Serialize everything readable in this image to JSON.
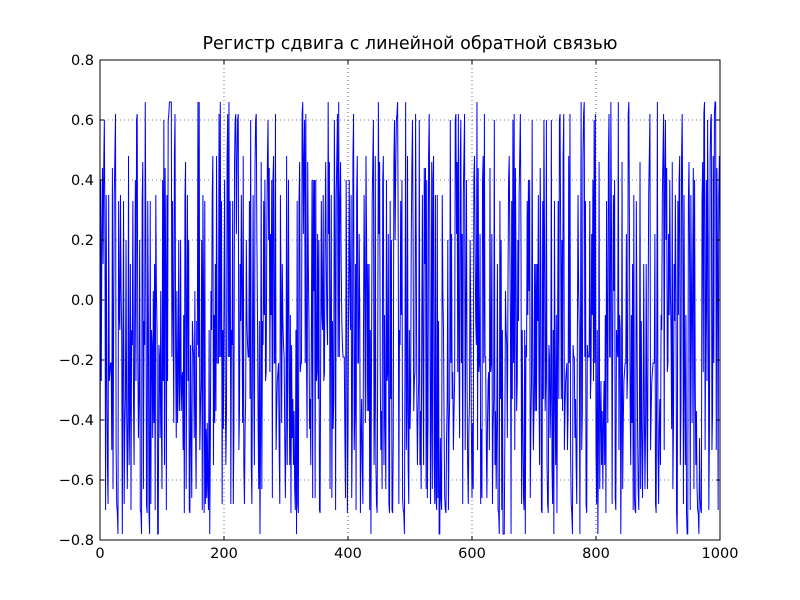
{
  "chart_data": {
    "type": "line",
    "title": "Регистр сдвига с линейной обратной связью",
    "xlabel": "",
    "ylabel": "",
    "xlim": [
      0,
      1000
    ],
    "ylim": [
      -0.8,
      0.8
    ],
    "x_ticks": [
      "0",
      "200",
      "400",
      "600",
      "800",
      "1000"
    ],
    "y_ticks": [
      "−0.8",
      "−0.6",
      "−0.4",
      "−0.2",
      "0.0",
      "0.2",
      "0.4",
      "0.6",
      "0.8"
    ],
    "grid": true,
    "levels": [
      0.66,
      0.62,
      0.6,
      0.48,
      0.46,
      0.44,
      0.4,
      0.35,
      0.33,
      0.22,
      0.2,
      0.12,
      0.03,
      -0.05,
      -0.07,
      -0.1,
      -0.15,
      -0.19,
      -0.21,
      -0.24,
      -0.27,
      -0.33,
      -0.37,
      -0.41,
      -0.43,
      -0.46,
      -0.5,
      -0.55,
      -0.63,
      -0.66,
      -0.68,
      -0.7,
      -0.71,
      -0.78
    ],
    "n_points": 1001,
    "series": [
      {
        "name": "",
        "color": "#0000ff",
        "x_start": 0,
        "x_step": 1
      }
    ]
  }
}
